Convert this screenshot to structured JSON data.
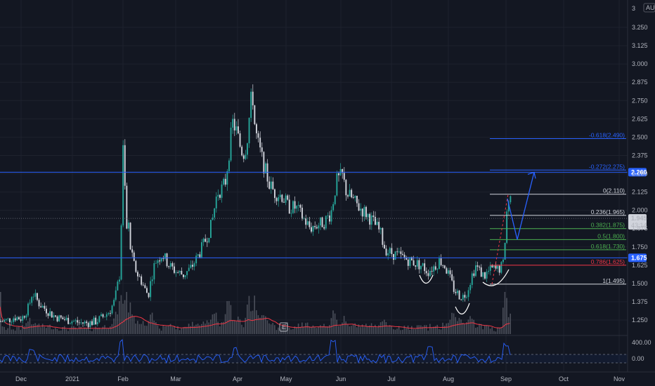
{
  "chart_data": {
    "type": "candlestick",
    "currency": "AUD",
    "y_axis": {
      "min": 1.2,
      "max": 3.4,
      "ticks": [
        "3.250",
        "3.125",
        "3.000",
        "2.875",
        "2.750",
        "2.625",
        "2.500",
        "2.375",
        "2.250",
        "2.125",
        "2.000",
        "1.875",
        "1.750",
        "1.625",
        "1.500",
        "1.375",
        "1.250"
      ],
      "top_label": "3"
    },
    "x_axis": {
      "labels": [
        "Dec",
        "2021",
        "Feb",
        "Mar",
        "Apr",
        "May",
        "Jun",
        "Jul",
        "Aug",
        "Sep",
        "Oct",
        "Nov"
      ]
    },
    "last_price": {
      "value": 1.945,
      "label": "1.945",
      "countdown": "43:14"
    },
    "horizontal_lines": [
      {
        "value": 2.26,
        "label": "2.260",
        "color": "#2962ff"
      },
      {
        "value": 1.675,
        "label": "1.675",
        "color": "#2962ff"
      }
    ],
    "fib_levels": [
      {
        "ratio": "-0.618",
        "price": "2.490",
        "value": 2.49,
        "color": "#2962ff"
      },
      {
        "ratio": "-0.272",
        "price": "2.275",
        "value": 2.275,
        "color": "#2962ff"
      },
      {
        "ratio": "0",
        "price": "2.110",
        "value": 2.11,
        "color": "#d1d4dc"
      },
      {
        "ratio": "0.236",
        "price": "1.965",
        "value": 1.965,
        "color": "#d1d4dc"
      },
      {
        "ratio": "0.382",
        "price": "1.875",
        "value": 1.875,
        "color": "#4caf50"
      },
      {
        "ratio": "0.5",
        "price": "1.800",
        "value": 1.8,
        "color": "#4caf50"
      },
      {
        "ratio": "0.618",
        "price": "1.730",
        "value": 1.73,
        "color": "#4caf50"
      },
      {
        "ratio": "0.786",
        "price": "1.625",
        "value": 1.625,
        "color": "#f23645"
      },
      {
        "ratio": "1",
        "price": "1.495",
        "value": 1.495,
        "color": "#d1d4dc"
      }
    ],
    "price_path": [
      [
        0,
        1.24
      ],
      [
        10,
        1.25
      ],
      [
        20,
        1.27
      ],
      [
        30,
        1.26
      ],
      [
        40,
        1.34
      ],
      [
        45,
        1.44
      ],
      [
        50,
        1.4
      ],
      [
        55,
        1.36
      ],
      [
        65,
        1.32
      ],
      [
        75,
        1.28
      ],
      [
        85,
        1.26
      ],
      [
        95,
        1.25
      ],
      [
        105,
        1.24
      ],
      [
        115,
        1.23
      ],
      [
        125,
        1.23
      ],
      [
        135,
        1.24
      ],
      [
        145,
        1.27
      ],
      [
        155,
        1.31
      ],
      [
        162,
        1.38
      ],
      [
        166,
        1.48
      ],
      [
        170,
        1.58
      ],
      [
        173,
        2.2
      ],
      [
        175,
        2.55
      ],
      [
        177,
        2.1
      ],
      [
        179,
        1.85
      ],
      [
        181,
        1.95
      ],
      [
        185,
        1.72
      ],
      [
        190,
        1.62
      ],
      [
        195,
        1.56
      ],
      [
        200,
        1.52
      ],
      [
        205,
        1.46
      ],
      [
        210,
        1.42
      ],
      [
        215,
        1.55
      ],
      [
        220,
        1.65
      ],
      [
        230,
        1.7
      ],
      [
        240,
        1.62
      ],
      [
        250,
        1.58
      ],
      [
        260,
        1.56
      ],
      [
        270,
        1.6
      ],
      [
        280,
        1.68
      ],
      [
        290,
        1.78
      ],
      [
        300,
        1.9
      ],
      [
        308,
        2.12
      ],
      [
        315,
        2.15
      ],
      [
        320,
        2.2
      ],
      [
        325,
        2.4
      ],
      [
        330,
        2.6
      ],
      [
        335,
        2.55
      ],
      [
        340,
        2.45
      ],
      [
        345,
        2.38
      ],
      [
        350,
        2.45
      ],
      [
        355,
        2.7
      ],
      [
        358,
        2.82
      ],
      [
        362,
        2.55
      ],
      [
        368,
        2.42
      ],
      [
        375,
        2.3
      ],
      [
        382,
        2.18
      ],
      [
        390,
        2.12
      ],
      [
        400,
        2.1
      ],
      [
        410,
        2.02
      ],
      [
        420,
        2.02
      ],
      [
        430,
        1.95
      ],
      [
        440,
        1.88
      ],
      [
        450,
        1.9
      ],
      [
        460,
        1.92
      ],
      [
        470,
        1.98
      ],
      [
        478,
        2.2
      ],
      [
        486,
        2.24
      ],
      [
        492,
        2.12
      ],
      [
        500,
        2.08
      ],
      [
        510,
        2.02
      ],
      [
        520,
        1.98
      ],
      [
        530,
        1.92
      ],
      [
        540,
        1.85
      ],
      [
        545,
        1.76
      ],
      [
        550,
        1.72
      ],
      [
        560,
        1.7
      ],
      [
        570,
        1.68
      ],
      [
        580,
        1.66
      ],
      [
        590,
        1.64
      ],
      [
        600,
        1.62
      ],
      [
        608,
        1.58
      ],
      [
        612,
        1.6
      ],
      [
        618,
        1.62
      ],
      [
        625,
        1.66
      ],
      [
        632,
        1.62
      ],
      [
        638,
        1.55
      ],
      [
        645,
        1.46
      ],
      [
        652,
        1.42
      ],
      [
        658,
        1.41
      ],
      [
        664,
        1.45
      ],
      [
        670,
        1.55
      ],
      [
        676,
        1.62
      ],
      [
        682,
        1.58
      ],
      [
        688,
        1.55
      ],
      [
        694,
        1.58
      ],
      [
        700,
        1.6
      ],
      [
        706,
        1.59
      ],
      [
        712,
        1.61
      ],
      [
        716,
        1.64
      ],
      [
        719,
        1.95
      ],
      [
        722,
        2.05
      ],
      [
        725,
        2.1
      ],
      [
        728,
        1.95
      ]
    ],
    "projection_path": [
      [
        722,
        2.08
      ],
      [
        736,
        1.8
      ],
      [
        760,
        2.26
      ]
    ],
    "projection_color": "#2962ff",
    "indicator": {
      "ticks": [
        "400.00",
        "0.00"
      ],
      "color": "#2962ff"
    },
    "colors": {
      "up": "#26a69a",
      "down": "#d1d4dc",
      "volume": "#787b86",
      "volume_ma": "#f23645",
      "grid": "#1e222d",
      "background": "#131722"
    },
    "watermark": "E"
  }
}
